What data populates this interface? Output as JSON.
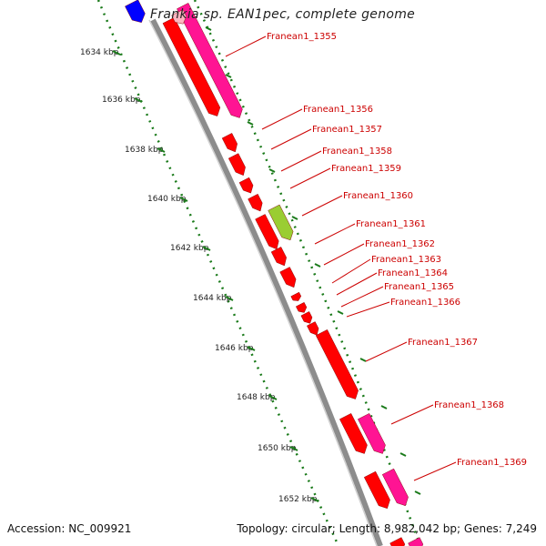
{
  "title": "Frankia sp. EAN1pec, complete genome",
  "footer": {
    "accession": "Accession: NC_009921",
    "summary": "Topology: circular; Length: 8,982,042 bp; Genes: 7,249"
  },
  "colors": {
    "backbone": "#8c8c8c",
    "cds": "#ff0000",
    "rna": "#ff1493",
    "rna_light": "#ffb6c1",
    "highlight": "#9acd32",
    "other_strand": "#0000ff",
    "tick": "#1a7a1a",
    "label": "#cc0000"
  },
  "axis_ticks": [
    "1634 kbp",
    "1636 kbp",
    "1638 kbp",
    "1640 kbp",
    "1642 kbp",
    "1644 kbp",
    "1646 kbp",
    "1648 kbp",
    "1650 kbp",
    "1652 kbp"
  ],
  "genes": [
    "Franean1_1355",
    "Franean1_1356",
    "Franean1_1357",
    "Franean1_1358",
    "Franean1_1359",
    "Franean1_1360",
    "Franean1_1361",
    "Franean1_1362",
    "Franean1_1363",
    "Franean1_1364",
    "Franean1_1365",
    "Franean1_1366",
    "Franean1_1367",
    "Franean1_1368",
    "Franean1_1369"
  ]
}
